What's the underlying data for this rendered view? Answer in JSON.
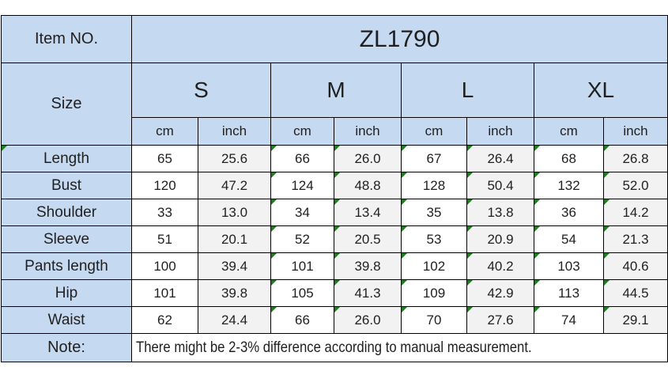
{
  "colors": {
    "header_bg": "#c5d9f1",
    "inch_cell_bg": "#f2f2f2",
    "grid_border": "#000000",
    "indicator_green": "#1e7b1e",
    "page_bg": "#ffffff"
  },
  "table": {
    "item_no_label": "Item NO.",
    "item_no_value": "ZL1790",
    "size_label": "Size",
    "sizes": [
      "S",
      "M",
      "L",
      "XL"
    ],
    "units": [
      "cm",
      "inch"
    ],
    "measurement_rows": [
      {
        "label": "Length",
        "values": [
          "65",
          "25.6",
          "66",
          "26.0",
          "67",
          "26.4",
          "68",
          "26.8"
        ]
      },
      {
        "label": "Bust",
        "values": [
          "120",
          "47.2",
          "124",
          "48.8",
          "128",
          "50.4",
          "132",
          "52.0"
        ]
      },
      {
        "label": "Shoulder",
        "values": [
          "33",
          "13.0",
          "34",
          "13.4",
          "35",
          "13.8",
          "36",
          "14.2"
        ]
      },
      {
        "label": "Sleeve",
        "values": [
          "51",
          "20.1",
          "52",
          "20.5",
          "53",
          "20.9",
          "54",
          "21.3"
        ]
      },
      {
        "label": "Pants length",
        "values": [
          "100",
          "39.4",
          "101",
          "39.8",
          "102",
          "40.2",
          "103",
          "40.6"
        ]
      },
      {
        "label": "Hip",
        "values": [
          "101",
          "39.8",
          "105",
          "41.3",
          "109",
          "42.9",
          "113",
          "44.5"
        ]
      },
      {
        "label": "Waist",
        "values": [
          "62",
          "24.4",
          "66",
          "26.0",
          "70",
          "27.6",
          "74",
          "29.1"
        ]
      }
    ],
    "note_label": "Note:",
    "note_text": "There might be 2-3% difference according to manual measurement."
  }
}
